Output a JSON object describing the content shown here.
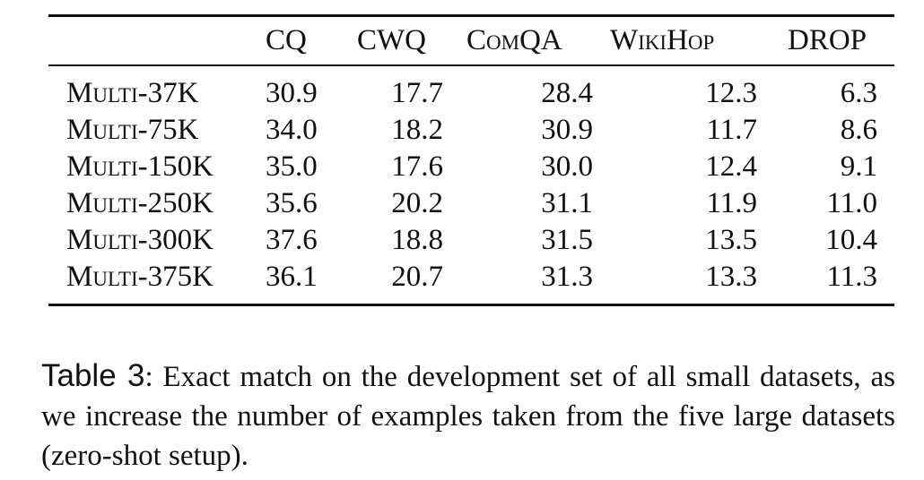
{
  "table": {
    "headers": [
      "",
      "CQ",
      "CWQ",
      "ComQA",
      "WikiHop",
      "DROP"
    ],
    "rows": [
      {
        "label": "Multi-37K",
        "values": [
          "30.9",
          "17.7",
          "28.4",
          "12.3",
          "6.3"
        ]
      },
      {
        "label": "Multi-75K",
        "values": [
          "34.0",
          "18.2",
          "30.9",
          "11.7",
          "8.6"
        ]
      },
      {
        "label": "Multi-150K",
        "values": [
          "35.0",
          "17.6",
          "30.0",
          "12.4",
          "9.1"
        ]
      },
      {
        "label": "Multi-250K",
        "values": [
          "35.6",
          "20.2",
          "31.1",
          "11.9",
          "11.0"
        ]
      },
      {
        "label": "Multi-300K",
        "values": [
          "37.6",
          "18.8",
          "31.5",
          "13.5",
          "10.4"
        ]
      },
      {
        "label": "Multi-375K",
        "values": [
          "36.1",
          "20.7",
          "31.3",
          "13.3",
          "11.3"
        ]
      }
    ]
  },
  "caption": {
    "label": "Table 3",
    "text": ": Exact match on the development set of all small datasets, as we increase the number of examples taken from the five large datasets (zero-shot setup)."
  }
}
